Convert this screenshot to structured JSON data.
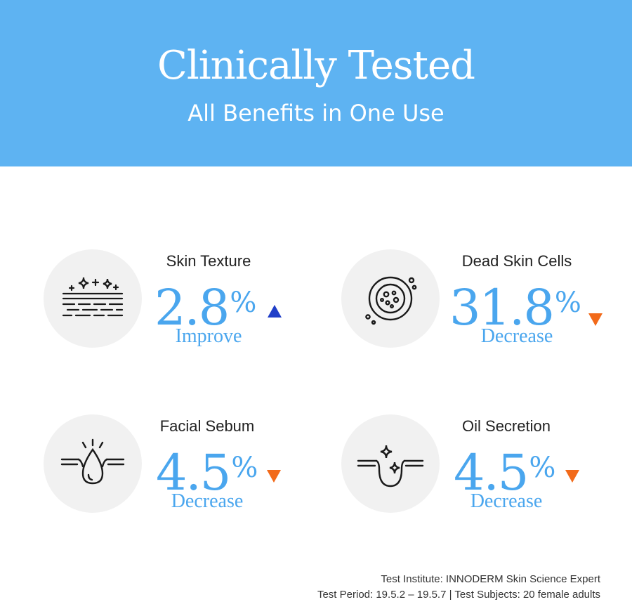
{
  "header": {
    "title": "Clinically Tested",
    "subtitle": "All Benefits in One Use"
  },
  "colors": {
    "banner": "#5eb3f2",
    "value": "#4aa6ee",
    "increase_arrow": "#1f3ec8",
    "decrease_arrow": "#f26a1a"
  },
  "stats": [
    {
      "label": "Skin Texture",
      "value": "2.8",
      "unit": "%",
      "direction": "up",
      "change": "Improve",
      "icon": "sparkle-texture-icon"
    },
    {
      "label": "Dead Skin Cells",
      "value": "31.8",
      "unit": "%",
      "direction": "down",
      "change": "Decrease",
      "icon": "dead-cells-icon"
    },
    {
      "label": "Facial Sebum",
      "value": "4.5",
      "unit": "%",
      "direction": "down",
      "change": "Decrease",
      "icon": "sebum-drop-icon"
    },
    {
      "label": "Oil Secretion",
      "value": "4.5",
      "unit": "%",
      "direction": "down",
      "change": "Decrease",
      "icon": "oil-secretion-icon"
    }
  ],
  "footer": {
    "institute": "Test Institute: INNODERM Skin Science Expert",
    "period": "Test Period: 19.5.2 – 19.5.7 | Test Subjects: 20 female adults"
  }
}
